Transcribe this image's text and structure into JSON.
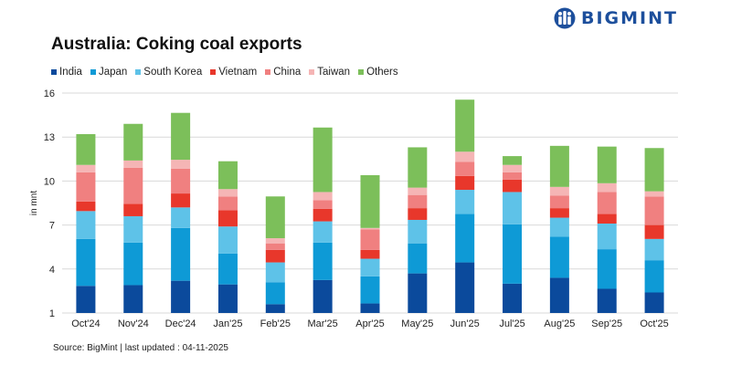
{
  "brand": {
    "name": "BIGMINT",
    "color": "#1d4f9c"
  },
  "source": "Source: BigMint | last updated : 04-11-2025",
  "chart_data": {
    "type": "bar",
    "stacked": true,
    "title": "Australia: Coking coal exports",
    "xlabel": "",
    "ylabel": "in mnt",
    "ylim": [
      1,
      16
    ],
    "yticks": [
      1,
      4,
      7,
      10,
      13,
      16
    ],
    "grid": true,
    "legend_position": "top-left",
    "categories": [
      "Oct'24",
      "Nov'24",
      "Dec'24",
      "Jan'25",
      "Feb'25",
      "Mar'25",
      "Apr'25",
      "May'25",
      "Jun'25",
      "Jul'25",
      "Aug'25",
      "Sep'25",
      "Oct'25"
    ],
    "series": [
      {
        "name": "India",
        "color": "#0b4a9c",
        "values": [
          1.85,
          1.9,
          2.2,
          1.95,
          0.6,
          2.25,
          0.65,
          2.7,
          3.45,
          2.0,
          2.4,
          1.65,
          1.4
        ]
      },
      {
        "name": "Japan",
        "color": "#0e9ad6",
        "values": [
          3.2,
          2.9,
          3.6,
          2.1,
          1.5,
          2.55,
          1.85,
          2.05,
          3.3,
          4.05,
          2.8,
          2.7,
          2.2
        ]
      },
      {
        "name": "South Korea",
        "color": "#5ec2e8",
        "values": [
          1.9,
          1.8,
          1.4,
          1.85,
          1.35,
          1.45,
          1.2,
          1.6,
          1.65,
          2.2,
          1.3,
          1.75,
          1.45
        ]
      },
      {
        "name": "Vietnam",
        "color": "#e8372b",
        "values": [
          0.65,
          0.85,
          0.95,
          1.1,
          0.85,
          0.85,
          0.6,
          0.8,
          0.95,
          0.85,
          0.65,
          0.65,
          0.95
        ]
      },
      {
        "name": "China",
        "color": "#f08080",
        "values": [
          2.0,
          2.45,
          1.7,
          0.95,
          0.45,
          0.6,
          1.4,
          0.9,
          0.95,
          0.5,
          0.85,
          1.5,
          1.95
        ]
      },
      {
        "name": "Taiwan",
        "color": "#f5b5b5",
        "values": [
          0.5,
          0.5,
          0.6,
          0.5,
          0.35,
          0.55,
          0.1,
          0.5,
          0.7,
          0.5,
          0.6,
          0.6,
          0.35
        ]
      },
      {
        "name": "Others",
        "color": "#7cbf5a",
        "values": [
          2.1,
          2.5,
          3.2,
          1.9,
          2.85,
          4.4,
          3.6,
          2.75,
          3.55,
          0.6,
          2.8,
          2.5,
          2.95
        ]
      }
    ]
  }
}
